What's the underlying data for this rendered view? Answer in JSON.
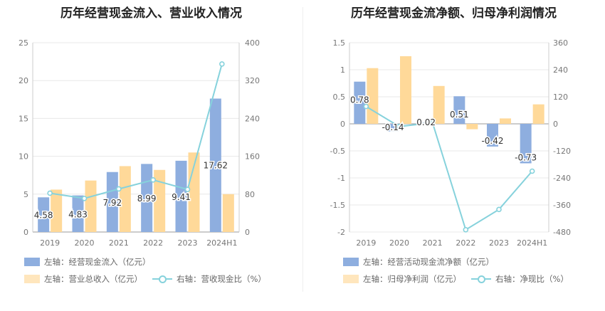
{
  "colors": {
    "bar_primary": "#8eaedf",
    "bar_secondary": "#ffd999",
    "line": "#86d2dc",
    "grid": "#e8e8e8",
    "axis_text": "#777777",
    "label_text": "#333333"
  },
  "chart_data": [
    {
      "type": "bar",
      "title": "历年经营现金流入、营业收入情况",
      "categories": [
        "2019",
        "2020",
        "2021",
        "2022",
        "2023",
        "2024H1"
      ],
      "y_left": {
        "min": 0,
        "max": 25,
        "ticks": [
          "0",
          "5",
          "10",
          "15",
          "20",
          "25"
        ]
      },
      "y_right": {
        "min": 0,
        "max": 400,
        "ticks": [
          "0",
          "80",
          "160",
          "240",
          "320",
          "400"
        ]
      },
      "grid": true,
      "series": [
        {
          "name": "左轴：经营现金流入（亿元）",
          "axis": "left",
          "kind": "bar",
          "values": [
            4.58,
            4.83,
            7.92,
            8.99,
            9.41,
            17.62
          ],
          "labels": [
            "4.58",
            "4.83",
            "7.92",
            "8.99",
            "9.41",
            "17.62"
          ]
        },
        {
          "name": "左轴：营业总收入（亿元）",
          "axis": "left",
          "kind": "bar",
          "values": [
            5.6,
            6.8,
            8.7,
            8.2,
            10.5,
            5.0
          ]
        },
        {
          "name": "右轴：营收现金比（%）",
          "axis": "right",
          "kind": "line",
          "values": [
            82,
            71,
            91,
            110,
            90,
            355
          ]
        }
      ],
      "legend": "bottom-left"
    },
    {
      "type": "bar",
      "title": "历年经营现金流净额、归母净利润情况",
      "categories": [
        "2019",
        "2020",
        "2021",
        "2022",
        "2023",
        "2024H1"
      ],
      "y_left": {
        "min": -2,
        "max": 1.5,
        "ticks": [
          "-2",
          "-1.5",
          "-1",
          "-0.5",
          "0",
          "0.5",
          "1",
          "1.5"
        ]
      },
      "y_right": {
        "min": -480,
        "max": 360,
        "ticks": [
          "-480",
          "-360",
          "-240",
          "-120",
          "0",
          "120",
          "240",
          "360"
        ]
      },
      "grid": true,
      "series": [
        {
          "name": "左轴：经营活动现金流净额（亿元）",
          "axis": "left",
          "kind": "bar",
          "values": [
            0.78,
            -0.14,
            0.02,
            0.51,
            -0.42,
            -0.73
          ],
          "labels": [
            "0.78",
            "-0.14",
            "0.02",
            "0.51",
            "-0.42",
            "-0.73"
          ]
        },
        {
          "name": "左轴：归母净利润（亿元）",
          "axis": "left",
          "kind": "bar",
          "values": [
            1.03,
            1.25,
            0.7,
            -0.1,
            0.1,
            0.36
          ]
        },
        {
          "name": "右轴：净现比（%）",
          "axis": "right",
          "kind": "line",
          "values": [
            77,
            -12,
            5,
            -470,
            -380,
            -210
          ]
        }
      ],
      "legend": "bottom-left"
    }
  ]
}
